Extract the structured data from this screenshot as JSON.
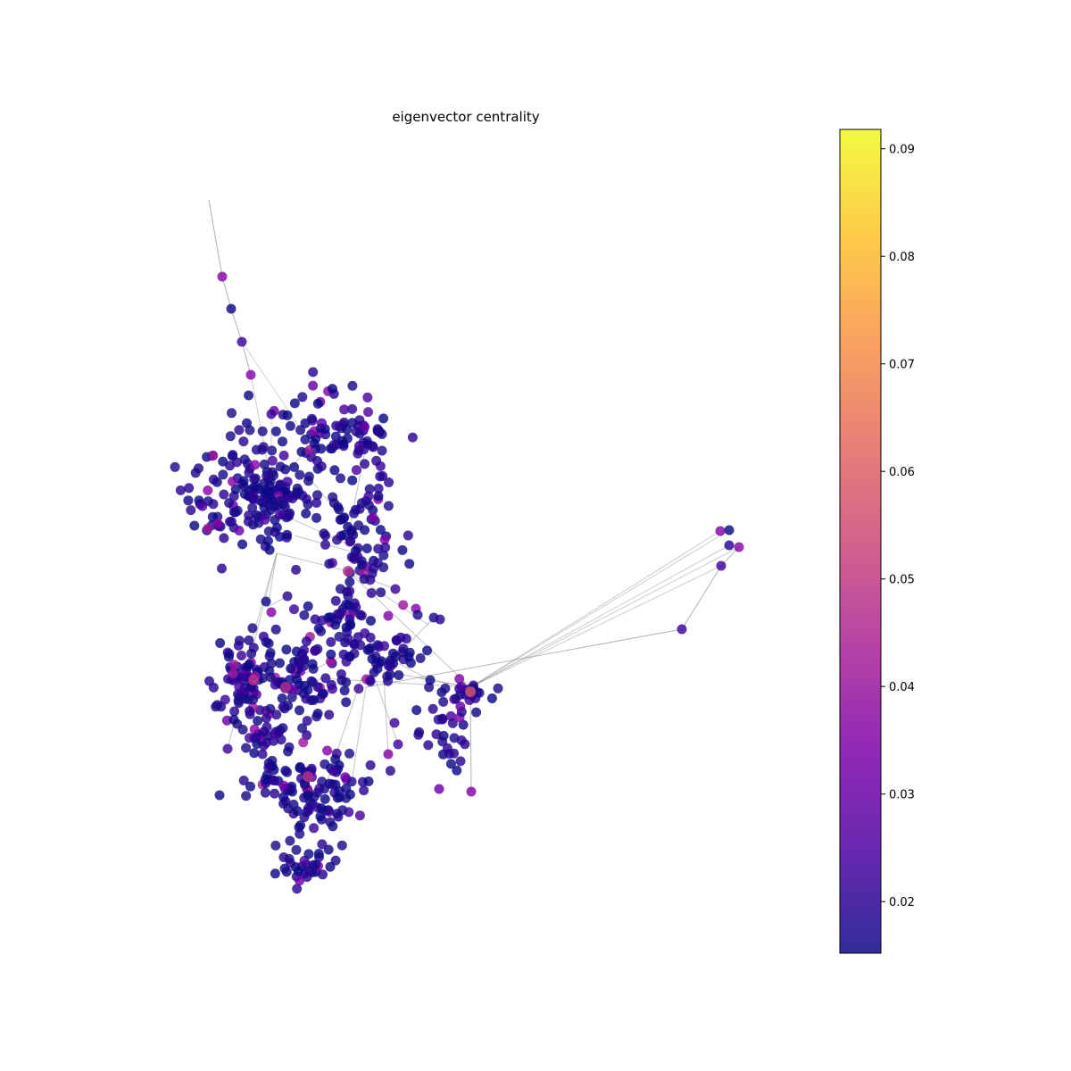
{
  "title": "eigenvector centrality",
  "colorbar": {
    "colormap": "plasma",
    "range": [
      0.0152,
      0.0918
    ],
    "ticks": [
      {
        "value": 0.02,
        "label": "0.02"
      },
      {
        "value": 0.03,
        "label": "0.03"
      },
      {
        "value": 0.04,
        "label": "0.04"
      },
      {
        "value": 0.05,
        "label": "0.05"
      },
      {
        "value": 0.06,
        "label": "0.06"
      },
      {
        "value": 0.07,
        "label": "0.07"
      },
      {
        "value": 0.08,
        "label": "0.08"
      },
      {
        "value": 0.09,
        "label": "0.09"
      }
    ]
  },
  "colors": {
    "low": "#0d0887",
    "mid": "#9c179e",
    "high": "#f0f921",
    "edge": "#7f7f7f"
  }
}
